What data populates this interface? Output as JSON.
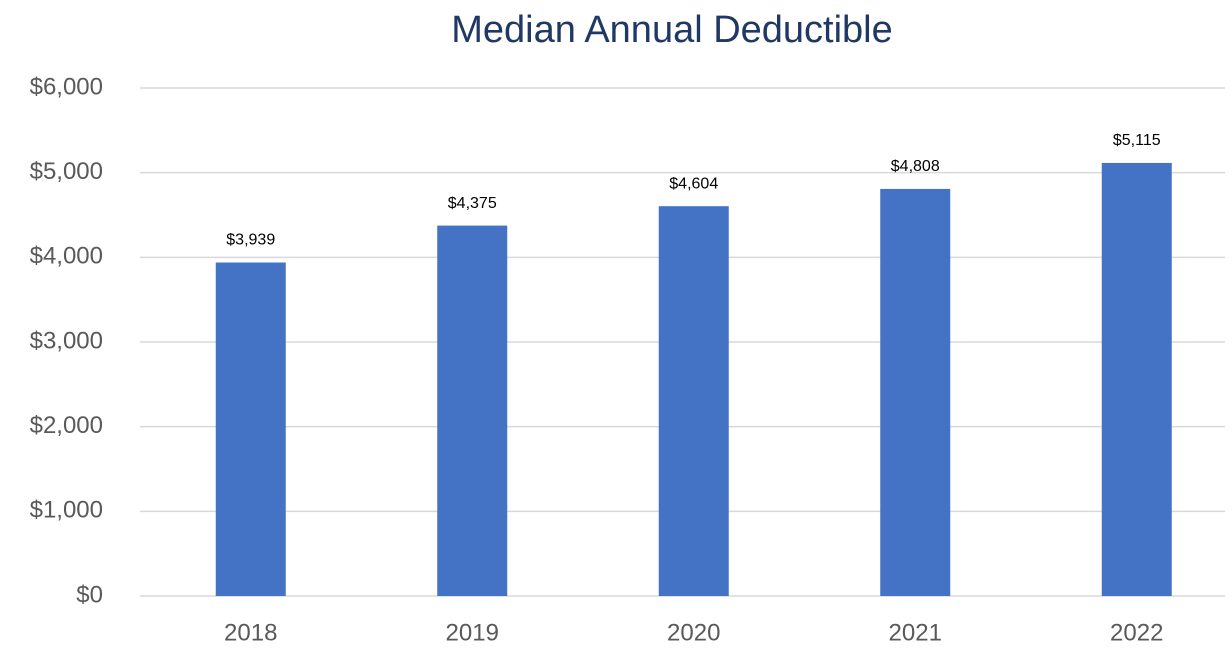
{
  "chart_data": {
    "type": "bar",
    "title": "Median Annual Deductible",
    "categories": [
      "2018",
      "2019",
      "2020",
      "2021",
      "2022"
    ],
    "values": [
      3939,
      4375,
      4604,
      4808,
      5115
    ],
    "value_labels": [
      "$3,939",
      "$4,375",
      "$4,604",
      "$4,808",
      "$5,115"
    ],
    "color": "#4472c4",
    "ylim": [
      0,
      6000
    ],
    "yticks": [
      {
        "value": 0,
        "label": "$0"
      },
      {
        "value": 1000,
        "label": "$1,000"
      },
      {
        "value": 2000,
        "label": "$2,000"
      },
      {
        "value": 3000,
        "label": "$3,000"
      },
      {
        "value": 4000,
        "label": "$4,000"
      },
      {
        "value": 5000,
        "label": "$5,000"
      },
      {
        "value": 6000,
        "label": "$6,000"
      }
    ],
    "grid": true
  }
}
